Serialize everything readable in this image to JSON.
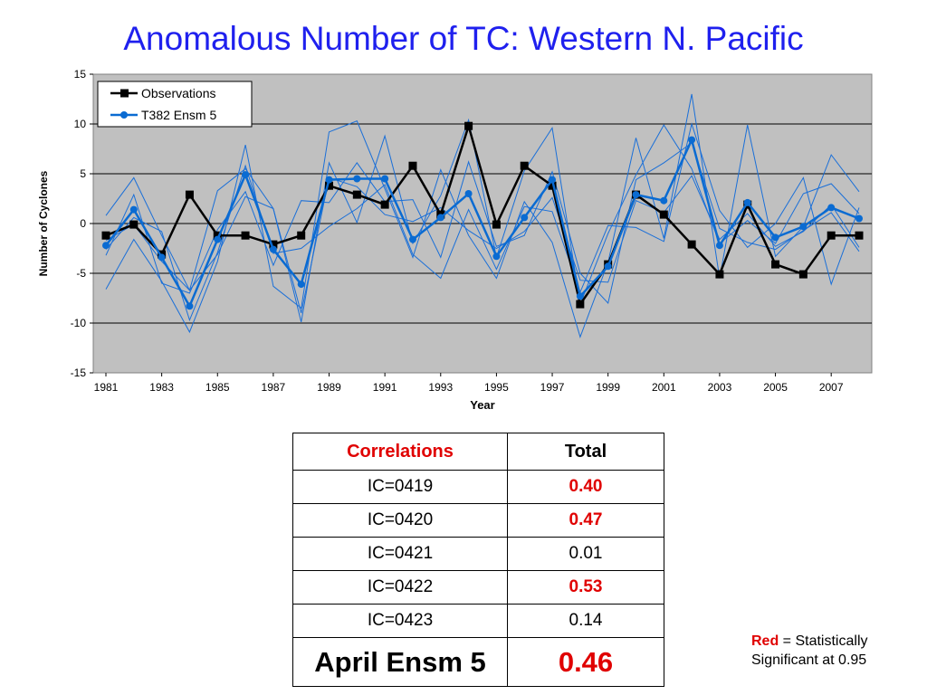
{
  "title": "Anomalous Number of TC: Western N. Pacific",
  "chart_data": {
    "type": "line",
    "xlabel": "Year",
    "ylabel": "Number of Cyclones",
    "ylim": [
      -15,
      15
    ],
    "yticks": [
      -15,
      -10,
      -5,
      0,
      5,
      10,
      15
    ],
    "xlim": [
      1981,
      2008
    ],
    "xticks": [
      1981,
      1983,
      1985,
      1987,
      1989,
      1991,
      1993,
      1995,
      1997,
      1999,
      2001,
      2003,
      2005,
      2007
    ],
    "x": [
      1981,
      1982,
      1983,
      1984,
      1985,
      1986,
      1987,
      1988,
      1989,
      1990,
      1991,
      1992,
      1993,
      1994,
      1995,
      1996,
      1997,
      1998,
      1999,
      2000,
      2001,
      2002,
      2003,
      2004,
      2005,
      2006,
      2007,
      2008
    ],
    "grid": "horizontal",
    "plot_background": "#c0c0c0",
    "legend_position": "top-left",
    "series": [
      {
        "name": "Observations",
        "color": "#000000",
        "marker": "square",
        "values": [
          -1.2,
          -0.1,
          -3.1,
          2.9,
          -1.2,
          -1.2,
          -2.1,
          -1.2,
          3.8,
          2.9,
          1.9,
          5.8,
          0.9,
          9.8,
          -0.1,
          5.8,
          3.8,
          -8.1,
          -4.1,
          2.9,
          0.9,
          -2.1,
          -5.1,
          1.9,
          -4.1,
          -5.1,
          -1.2,
          -1.2
        ]
      },
      {
        "name": "T382 Ensm 5",
        "color": "#0a6bd2",
        "marker": "circle",
        "values": [
          -2.2,
          1.4,
          -3.4,
          -8.3,
          -1.6,
          4.9,
          -2.6,
          -6.1,
          4.4,
          4.5,
          4.5,
          -1.6,
          0.6,
          3.0,
          -3.3,
          0.6,
          4.4,
          -7.3,
          -4.3,
          2.9,
          2.3,
          8.4,
          -2.2,
          2.1,
          -1.4,
          -0.3,
          1.6,
          0.5
        ]
      },
      {
        "name": "",
        "color": "#1a6fd8",
        "marker": "none",
        "values": [
          -6.6,
          -1.6,
          -5.8,
          -10.9,
          -3.8,
          7.9,
          -6.3,
          -8.5,
          9.2,
          10.3,
          3.5,
          -3.4,
          5.4,
          -1.2,
          -5.5,
          2.2,
          -1.9,
          -11.4,
          -3.9,
          8.6,
          -1.5,
          13.0,
          -5.5,
          9.9,
          -3.3,
          -0.3,
          6.9,
          3.2
        ]
      },
      {
        "name": "",
        "color": "#1a6fd8",
        "marker": "none",
        "values": [
          0.8,
          4.6,
          -1.2,
          -6.7,
          3.3,
          5.5,
          1.5,
          -9.9,
          6.1,
          0.1,
          8.8,
          -2.0,
          2.8,
          10.4,
          -3.4,
          5.3,
          9.6,
          -8.1,
          -1.0,
          4.9,
          9.9,
          5.5,
          -2.0,
          0.3,
          -2.0,
          3.0,
          4.0,
          1.0
        ]
      },
      {
        "name": "",
        "color": "#1a6fd8",
        "marker": "none",
        "values": [
          -3.2,
          2.9,
          -6.0,
          -7.0,
          -0.6,
          3.2,
          -4.2,
          2.3,
          2.1,
          6.1,
          2.2,
          2.4,
          -3.4,
          6.2,
          -2.3,
          -1.2,
          5.2,
          -5.0,
          -8.0,
          4.4,
          6.1,
          8.1,
          -0.5,
          -1.9,
          -2.6,
          -0.7,
          1.1,
          -2.8
        ]
      },
      {
        "name": "",
        "color": "#1a6fd8",
        "marker": "none",
        "values": [
          -2.6,
          0.6,
          -0.8,
          -9.7,
          -2.9,
          5.8,
          -3.0,
          -2.5,
          -0.3,
          1.5,
          3.9,
          -3.1,
          -5.5,
          1.4,
          -4.6,
          1.7,
          1.2,
          -6.9,
          -0.2,
          -0.4,
          -1.8,
          10.0,
          1.3,
          -2.4,
          0.0,
          4.6,
          -6.1,
          1.6
        ]
      },
      {
        "name": "",
        "color": "#1a6fd8",
        "marker": "none",
        "values": [
          -1.7,
          -0.1,
          -3.8,
          -6.7,
          -3.1,
          2.7,
          1.5,
          -9.0,
          4.6,
          3.7,
          0.9,
          0.2,
          1.6,
          -0.7,
          -2.5,
          -0.8,
          2.6,
          -5.7,
          -5.9,
          2.3,
          1.1,
          4.8,
          -1.6,
          1.0,
          -2.3,
          -0.8,
          1.9,
          -2.4
        ]
      }
    ]
  },
  "table": {
    "header": [
      "Correlations",
      "Total"
    ],
    "rows": [
      {
        "label": "IC=0419",
        "value": "0.40"
      },
      {
        "label": "IC=0420",
        "value": "0.47"
      },
      {
        "label": "IC=0421",
        "value": "0.01"
      },
      {
        "label": "IC=0422",
        "value": "0.53"
      },
      {
        "label": "IC=0423",
        "value": "0.14"
      }
    ],
    "summary": {
      "label": "April Ensm 5",
      "value": "0.46"
    }
  },
  "note": {
    "red_word": "Red",
    "rest": " = Statistically",
    "line2": "Significant at 0.95"
  },
  "colors": {
    "title": "#1f20ee",
    "significant": "#e00000",
    "plot_background": "#c0c0c0"
  }
}
